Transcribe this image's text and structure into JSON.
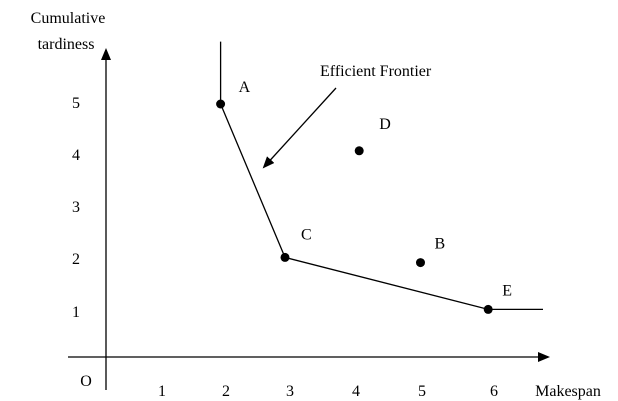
{
  "chart_data": {
    "type": "scatter",
    "title": "",
    "xlabel": "Makespan",
    "ylabel_line1": "Cumulative",
    "ylabel_line2": "tardiness",
    "origin_label": "O",
    "xlim": [
      0,
      7
    ],
    "ylim": [
      0,
      6
    ],
    "xticks": [
      "1",
      "2",
      "3",
      "4",
      "5",
      "6"
    ],
    "yticks": [
      "1",
      "2",
      "3",
      "4",
      "5"
    ],
    "grid": false,
    "points": [
      {
        "label": "A",
        "x": 1.9,
        "y": 5.0
      },
      {
        "label": "B",
        "x": 5.0,
        "y": 1.95
      },
      {
        "label": "C",
        "x": 2.9,
        "y": 2.05
      },
      {
        "label": "D",
        "x": 4.05,
        "y": 4.1
      },
      {
        "label": "E",
        "x": 6.05,
        "y": 1.05
      }
    ],
    "frontier": {
      "name": "Efficient Frontier",
      "path": [
        [
          1.9,
          6.2
        ],
        [
          1.9,
          5.0
        ],
        [
          2.9,
          2.05
        ],
        [
          6.05,
          1.05
        ],
        [
          6.9,
          1.05
        ]
      ]
    },
    "annotation": {
      "text": "Efficient Frontier"
    }
  }
}
